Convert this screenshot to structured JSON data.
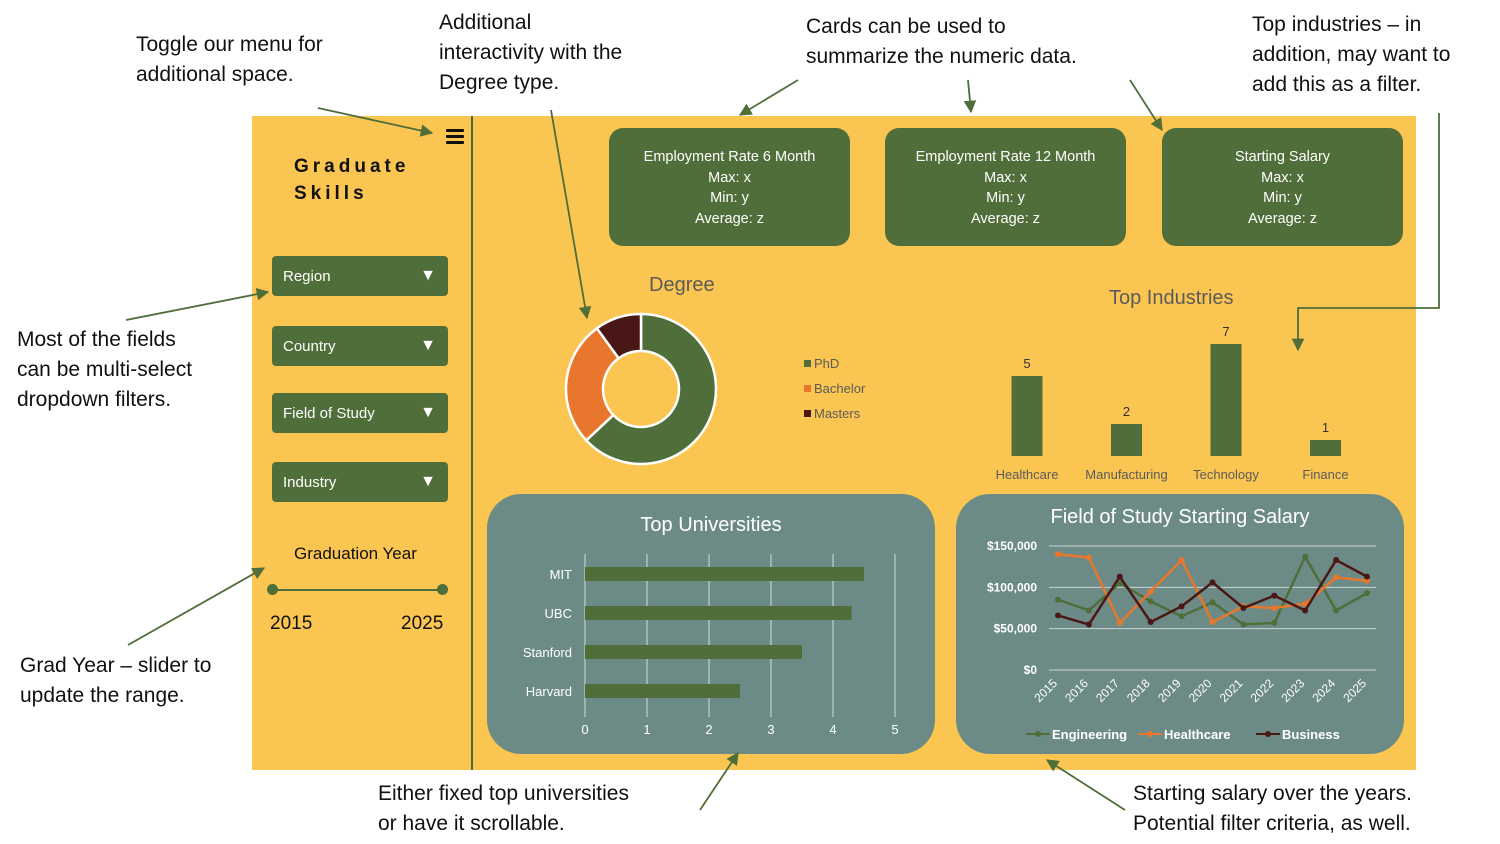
{
  "annotations": {
    "menu": "Toggle our menu for\nadditional space.",
    "degree": "Additional\ninteractivity with the\nDegree type.",
    "cards": "Cards can be used to\nsummarize the numeric data.",
    "industries": "Top industries – in\naddition, may want to\nadd this as a filter.",
    "filters": "Most of the fields\ncan be multi-select\ndropdown filters.",
    "slider": "Grad Year – slider to\nupdate the range.",
    "universities": "Either fixed top universities\nor have it scrollable.",
    "salary": "Starting salary over the years.\nPotential filter criteria, as well."
  },
  "sidebar": {
    "title_line1": "Graduate",
    "title_line2": "Skills",
    "filters": [
      {
        "label": "Region",
        "caret": "▼"
      },
      {
        "label": "Country",
        "caret": "▼"
      },
      {
        "label": "Field of Study",
        "caret": "▼"
      },
      {
        "label": "Industry",
        "caret": "▼"
      }
    ],
    "slider": {
      "title": "Graduation Year",
      "min_label": "2015",
      "max_label": "2025"
    }
  },
  "cards": [
    {
      "title": "Employment Rate 6 Month",
      "max": "Max: x",
      "min": "Min: y",
      "avg": "Average: z"
    },
    {
      "title": "Employment Rate 12 Month",
      "max": "Max: x",
      "min": "Min: y",
      "avg": "Average: z"
    },
    {
      "title": "Starting Salary",
      "max": "Max: x",
      "min": "Min: y",
      "avg": "Average: z"
    }
  ],
  "colors": {
    "dashboard_bg": "#fbc551",
    "green": "#4f6e3a",
    "panel": "#6d8b86",
    "orange": "#e8762d",
    "maroon": "#4a1717"
  },
  "chart_data": [
    {
      "type": "pie",
      "title": "Degree",
      "donut": true,
      "categories": [
        "PhD",
        "Bachelor",
        "Masters"
      ],
      "values": [
        63,
        27,
        10
      ],
      "colors": [
        "#4f6e3a",
        "#e8762d",
        "#4a1717"
      ],
      "legend": "right"
    },
    {
      "type": "bar",
      "title": "Top Industries",
      "categories": [
        "Healthcare",
        "Manufacturing",
        "Technology",
        "Finance"
      ],
      "values": [
        5,
        2,
        7,
        1
      ],
      "ylim": [
        0,
        7
      ]
    },
    {
      "type": "bar",
      "orientation": "horizontal",
      "title": "Top Universities",
      "categories": [
        "MIT",
        "UBC",
        "Stanford",
        "Harvard"
      ],
      "values": [
        4.5,
        4.3,
        3.5,
        2.5
      ],
      "xlim": [
        0,
        5
      ],
      "xticks": [
        "0",
        "1",
        "2",
        "3",
        "4",
        "5"
      ],
      "grid": true
    },
    {
      "type": "line",
      "title": "Field of Study Starting Salary",
      "x": [
        "2015",
        "2016",
        "2017",
        "2018",
        "2019",
        "2020",
        "2021",
        "2022",
        "2023",
        "2024",
        "2025"
      ],
      "ylim": [
        0,
        150000
      ],
      "yticks": [
        "$0",
        "$50,000",
        "$100,000",
        "$150,000"
      ],
      "grid": true,
      "legend": "bottom",
      "series": [
        {
          "name": "Engineering",
          "color": "#4f6e3a",
          "values": [
            85000,
            72000,
            105000,
            83000,
            65000,
            82000,
            55000,
            57000,
            137000,
            72000,
            93000
          ]
        },
        {
          "name": "Healthcare",
          "color": "#e8762d",
          "values": [
            140000,
            136000,
            57000,
            95000,
            133000,
            58000,
            77000,
            75000,
            80000,
            112000,
            108000
          ]
        },
        {
          "name": "Business",
          "color": "#4a1717",
          "values": [
            66000,
            55000,
            113000,
            58000,
            77000,
            106000,
            75000,
            90000,
            72000,
            133000,
            113000
          ]
        }
      ]
    }
  ]
}
